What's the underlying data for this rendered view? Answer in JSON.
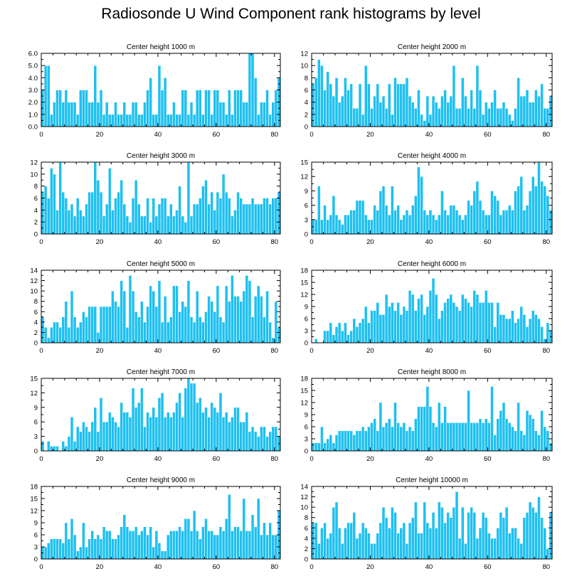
{
  "figure": {
    "title": "Radiosonde U Wind Component rank histograms by level",
    "bar_color": "#1ec0f0",
    "bar_edge_color": "#ffffff",
    "axis_color": "#000000"
  },
  "chart_data": [
    {
      "type": "bar",
      "title": "Center height 1000 m",
      "xlabel": "",
      "ylabel": "",
      "xlim": [
        0,
        82
      ],
      "ylim": [
        0,
        6
      ],
      "xticks": [
        0,
        20,
        40,
        60,
        80
      ],
      "yticks": [
        0,
        1,
        2,
        3,
        4,
        5,
        6
      ],
      "ytick_labels": [
        "0.0",
        "1.0",
        "2.0",
        "3.0",
        "4.0",
        "5.0",
        "6.0"
      ],
      "x_start": 0,
      "values": [
        3,
        5,
        5,
        1,
        2,
        3,
        3,
        2,
        3,
        2,
        2,
        2,
        1,
        3,
        3,
        3,
        2,
        2,
        5,
        2,
        3,
        1,
        2,
        1,
        1,
        2,
        1,
        1,
        2,
        1,
        1,
        2,
        2,
        1,
        1,
        2,
        3,
        4,
        1,
        1,
        5,
        3,
        4,
        1,
        1,
        2,
        1,
        1,
        3,
        3,
        1,
        2,
        1,
        3,
        3,
        1,
        3,
        3,
        1,
        3,
        3,
        2,
        2,
        1,
        3,
        1,
        3,
        3,
        3,
        2,
        2,
        6,
        6,
        4,
        1,
        2,
        2,
        3,
        1,
        2,
        3,
        4
      ]
    },
    {
      "type": "bar",
      "title": "Center height 2000 m",
      "xlabel": "",
      "ylabel": "",
      "xlim": [
        0,
        82
      ],
      "ylim": [
        0,
        12
      ],
      "xticks": [
        0,
        20,
        40,
        60,
        80
      ],
      "yticks": [
        0,
        2,
        4,
        6,
        8,
        10,
        12
      ],
      "ytick_labels": [
        "0",
        "2",
        "4",
        "6",
        "8",
        "10",
        "12"
      ],
      "x_start": 0,
      "values": [
        7,
        8,
        11,
        10,
        6,
        9,
        7,
        5,
        8,
        4,
        5,
        8,
        6,
        7,
        3,
        3,
        7,
        2,
        10,
        7,
        3,
        5,
        7,
        4,
        5,
        3,
        7,
        2,
        8,
        7,
        7,
        7,
        8,
        5,
        4,
        3,
        6,
        2,
        1,
        5,
        2,
        5,
        4,
        3,
        5,
        6,
        4,
        5,
        10,
        3,
        3,
        8,
        5,
        3,
        6,
        3,
        10,
        6,
        2,
        4,
        3,
        4,
        6,
        3,
        3,
        4,
        3,
        2,
        1,
        3,
        8,
        5,
        5,
        6,
        4,
        4,
        6,
        5,
        7,
        3,
        3,
        5
      ]
    },
    {
      "type": "bar",
      "title": "Center height 3000 m",
      "xlabel": "",
      "ylabel": "",
      "xlim": [
        0,
        82
      ],
      "ylim": [
        0,
        12
      ],
      "xticks": [
        0,
        20,
        40,
        60,
        80
      ],
      "yticks": [
        0,
        2,
        4,
        6,
        8,
        10,
        12
      ],
      "ytick_labels": [
        "0",
        "2",
        "4",
        "6",
        "8",
        "10",
        "12"
      ],
      "x_start": 0,
      "values": [
        7,
        8,
        6,
        11,
        10,
        4,
        12,
        7,
        6,
        4,
        5,
        3,
        6,
        4,
        3,
        5,
        7,
        7,
        12,
        9,
        7,
        3,
        5,
        11,
        4,
        6,
        7,
        9,
        5,
        3,
        2,
        6,
        9,
        5,
        3,
        3,
        6,
        2,
        6,
        3,
        5,
        6,
        6,
        3,
        5,
        3,
        4,
        8,
        3,
        2,
        12,
        3,
        5,
        5,
        6,
        8,
        9,
        5,
        7,
        4,
        7,
        6,
        10,
        7,
        6,
        3,
        4,
        7,
        6,
        5,
        5,
        5,
        6,
        5,
        5,
        5,
        6,
        6,
        5,
        6,
        6,
        7
      ]
    },
    {
      "type": "bar",
      "title": "Center height 4000 m",
      "xlabel": "",
      "ylabel": "",
      "xlim": [
        0,
        82
      ],
      "ylim": [
        0,
        15
      ],
      "xticks": [
        0,
        20,
        40,
        60,
        80
      ],
      "yticks": [
        0,
        3,
        6,
        9,
        12,
        15
      ],
      "ytick_labels": [
        "0",
        "3",
        "6",
        "9",
        "12",
        "15"
      ],
      "x_start": 0,
      "values": [
        3,
        3,
        10,
        3,
        6,
        3,
        4,
        8,
        4,
        3,
        2,
        4,
        4,
        5,
        5,
        7,
        7,
        7,
        4,
        3,
        3,
        6,
        5,
        9,
        10,
        6,
        4,
        10,
        5,
        6,
        3,
        4,
        5,
        4,
        6,
        8,
        14,
        12,
        5,
        4,
        5,
        4,
        3,
        4,
        9,
        5,
        4,
        6,
        6,
        5,
        4,
        3,
        4,
        7,
        6,
        9,
        11,
        7,
        5,
        4,
        4,
        9,
        8,
        7,
        4,
        5,
        5,
        6,
        5,
        9,
        10,
        12,
        5,
        6,
        9,
        12,
        10,
        15,
        11,
        10,
        8,
        5
      ]
    },
    {
      "type": "bar",
      "title": "Center height 5000 m",
      "xlabel": "",
      "ylabel": "",
      "xlim": [
        0,
        82
      ],
      "ylim": [
        0,
        14
      ],
      "xticks": [
        0,
        20,
        40,
        60,
        80
      ],
      "yticks": [
        0,
        2,
        4,
        6,
        8,
        10,
        12,
        14
      ],
      "ytick_labels": [
        "0",
        "2",
        "4",
        "6",
        "8",
        "10",
        "12",
        "14"
      ],
      "x_start": 0,
      "values": [
        5,
        3,
        1,
        3,
        4,
        4,
        3,
        5,
        8,
        3,
        10,
        5,
        3,
        4,
        6,
        5,
        7,
        7,
        7,
        2,
        7,
        7,
        7,
        7,
        10,
        8,
        7,
        12,
        10,
        3,
        13,
        10,
        6,
        5,
        8,
        4,
        7,
        11,
        10,
        7,
        12,
        4,
        9,
        4,
        5,
        11,
        11,
        6,
        8,
        7,
        12,
        5,
        4,
        10,
        5,
        4,
        6,
        9,
        8,
        6,
        11,
        5,
        4,
        11,
        8,
        13,
        9,
        9,
        8,
        10,
        13,
        12,
        5,
        9,
        11,
        9,
        5,
        10,
        4,
        1,
        8,
        3
      ]
    },
    {
      "type": "bar",
      "title": "Center height 6000 m",
      "xlabel": "",
      "ylabel": "",
      "xlim": [
        0,
        82
      ],
      "ylim": [
        0,
        18
      ],
      "xticks": [
        0,
        20,
        40,
        60,
        80
      ],
      "yticks": [
        0,
        3,
        6,
        9,
        12,
        15,
        18
      ],
      "ytick_labels": [
        "0",
        "3",
        "6",
        "9",
        "12",
        "15",
        "18"
      ],
      "x_start": 0,
      "values": [
        0,
        1,
        0,
        0,
        3,
        3,
        5,
        2,
        4,
        5,
        3,
        5,
        2,
        3,
        6,
        4,
        5,
        6,
        9,
        5,
        8,
        8,
        10,
        7,
        7,
        12,
        9,
        10,
        8,
        10,
        7,
        9,
        8,
        13,
        12,
        8,
        11,
        12,
        7,
        9,
        13,
        16,
        12,
        6,
        8,
        10,
        11,
        12,
        10,
        9,
        8,
        12,
        11,
        10,
        9,
        13,
        12,
        10,
        10,
        13,
        10,
        10,
        4,
        10,
        7,
        7,
        6,
        6,
        8,
        5,
        6,
        9,
        7,
        4,
        6,
        8,
        7,
        6,
        4,
        1,
        5,
        3
      ]
    },
    {
      "type": "bar",
      "title": "Center height 7000 m",
      "xlabel": "",
      "ylabel": "",
      "xlim": [
        0,
        82
      ],
      "ylim": [
        0,
        15
      ],
      "xticks": [
        0,
        20,
        40,
        60,
        80
      ],
      "yticks": [
        0,
        3,
        6,
        9,
        12,
        15
      ],
      "ytick_labels": [
        "0",
        "3",
        "6",
        "9",
        "12",
        "15"
      ],
      "x_start": 0,
      "values": [
        2,
        0,
        2,
        1,
        1,
        1,
        0,
        2,
        1,
        3,
        7,
        2,
        5,
        4,
        6,
        5,
        4,
        6,
        9,
        4,
        11,
        6,
        6,
        8,
        7,
        6,
        5,
        10,
        8,
        8,
        7,
        13,
        9,
        10,
        13,
        5,
        8,
        7,
        9,
        7,
        11,
        12,
        7,
        8,
        7,
        8,
        10,
        12,
        7,
        13,
        15,
        14,
        14,
        10,
        11,
        8,
        9,
        7,
        10,
        9,
        8,
        12,
        7,
        8,
        6,
        7,
        9,
        9,
        6,
        6,
        8,
        4,
        5,
        4,
        3,
        5,
        5,
        3,
        4,
        5,
        5,
        3
      ]
    },
    {
      "type": "bar",
      "title": "Center height 8000 m",
      "xlabel": "",
      "ylabel": "",
      "xlim": [
        0,
        82
      ],
      "ylim": [
        0,
        18
      ],
      "xticks": [
        0,
        20,
        40,
        60,
        80
      ],
      "yticks": [
        0,
        3,
        6,
        9,
        12,
        15,
        18
      ],
      "ytick_labels": [
        "0",
        "3",
        "6",
        "9",
        "12",
        "15",
        "18"
      ],
      "x_start": 0,
      "values": [
        2,
        2,
        2,
        6,
        2,
        3,
        4,
        2,
        4,
        5,
        5,
        5,
        5,
        5,
        4,
        5,
        5,
        6,
        5,
        6,
        7,
        8,
        5,
        12,
        6,
        7,
        8,
        6,
        12,
        7,
        6,
        7,
        5,
        6,
        5,
        8,
        11,
        11,
        11,
        16,
        11,
        7,
        6,
        12,
        7,
        11,
        7,
        7,
        7,
        7,
        7,
        7,
        7,
        15,
        7,
        7,
        7,
        8,
        7,
        8,
        7,
        16,
        4,
        8,
        10,
        12,
        8,
        7,
        6,
        5,
        12,
        5,
        4,
        10,
        9,
        8,
        5,
        4,
        10,
        6,
        5,
        2
      ]
    },
    {
      "type": "bar",
      "title": "Center height 9000 m",
      "xlabel": "",
      "ylabel": "",
      "xlim": [
        0,
        82
      ],
      "ylim": [
        0,
        18
      ],
      "xticks": [
        0,
        20,
        40,
        60,
        80
      ],
      "yticks": [
        0,
        3,
        6,
        9,
        12,
        15,
        18
      ],
      "ytick_labels": [
        "0",
        "3",
        "6",
        "9",
        "12",
        "15",
        "18"
      ],
      "x_start": 0,
      "values": [
        3,
        3,
        4,
        5,
        5,
        5,
        5,
        4,
        9,
        5,
        10,
        6,
        2,
        3,
        9,
        3,
        5,
        7,
        5,
        6,
        5,
        8,
        7,
        7,
        5,
        5,
        6,
        8,
        11,
        8,
        7,
        7,
        8,
        6,
        7,
        8,
        6,
        8,
        3,
        7,
        4,
        2,
        2,
        6,
        7,
        7,
        7,
        8,
        7,
        10,
        10,
        7,
        12,
        7,
        5,
        8,
        10,
        7,
        7,
        6,
        6,
        8,
        7,
        10,
        16,
        7,
        8,
        8,
        7,
        15,
        7,
        7,
        11,
        8,
        15,
        6,
        9,
        6,
        9,
        6,
        6,
        12
      ]
    },
    {
      "type": "bar",
      "title": "Center height 10000 m",
      "xlabel": "",
      "ylabel": "",
      "xlim": [
        0,
        82
      ],
      "ylim": [
        0,
        14
      ],
      "xticks": [
        0,
        20,
        40,
        60,
        80
      ],
      "yticks": [
        0,
        2,
        4,
        6,
        8,
        10,
        12,
        14
      ],
      "ytick_labels": [
        "0",
        "2",
        "4",
        "6",
        "8",
        "10",
        "12",
        "14"
      ],
      "x_start": 0,
      "values": [
        7,
        7,
        3,
        6,
        7,
        4,
        5,
        10,
        11,
        6,
        3,
        6,
        7,
        7,
        9,
        4,
        5,
        7,
        6,
        5,
        3,
        3,
        5,
        7,
        10,
        8,
        6,
        10,
        9,
        5,
        6,
        7,
        3,
        7,
        8,
        11,
        5,
        5,
        11,
        7,
        6,
        9,
        6,
        11,
        10,
        7,
        9,
        8,
        10,
        13,
        4,
        10,
        3,
        9,
        10,
        9,
        4,
        6,
        9,
        8,
        5,
        4,
        4,
        6,
        9,
        8,
        10,
        5,
        6,
        6,
        4,
        3,
        8,
        9,
        11,
        10,
        9,
        12,
        8,
        6,
        2,
        9
      ]
    }
  ]
}
